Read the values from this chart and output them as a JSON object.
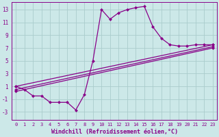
{
  "background_color": "#cce8e8",
  "grid_color": "#aacccc",
  "line_color": "#880088",
  "markersize": 2.5,
  "linewidth": 0.9,
  "xlabel": "Windchill (Refroidissement éolien,°C)",
  "xlabel_fontsize": 6,
  "xtick_fontsize": 5,
  "ytick_fontsize": 5.5,
  "xlim": [
    -0.5,
    23.5
  ],
  "ylim": [
    -4.2,
    14.2
  ],
  "yticks": [
    -3,
    -1,
    1,
    3,
    5,
    7,
    9,
    11,
    13
  ],
  "xticks": [
    0,
    1,
    2,
    3,
    4,
    5,
    6,
    7,
    8,
    9,
    10,
    11,
    12,
    13,
    14,
    15,
    16,
    17,
    18,
    19,
    20,
    21,
    22,
    23
  ],
  "line1_x": [
    0,
    1,
    2,
    3,
    4,
    5,
    6,
    7,
    8,
    9,
    10,
    11,
    12,
    13,
    14,
    15,
    16,
    17,
    18,
    19,
    20,
    21,
    22,
    23
  ],
  "line1_y": [
    1,
    0.5,
    -0.5,
    -0.5,
    -1.5,
    -1.5,
    -1.5,
    -2.7,
    -0.3,
    5.0,
    13.0,
    11.5,
    12.5,
    13.0,
    13.3,
    13.5,
    10.3,
    8.5,
    7.5,
    7.3,
    7.3,
    7.5,
    7.5,
    7.5
  ],
  "line2_x": [
    0,
    23
  ],
  "line2_y": [
    1.0,
    7.5
  ],
  "line3_x": [
    0,
    23
  ],
  "line3_y": [
    0.5,
    7.2
  ],
  "line4_x": [
    0,
    23
  ],
  "line4_y": [
    0.2,
    7.0
  ]
}
